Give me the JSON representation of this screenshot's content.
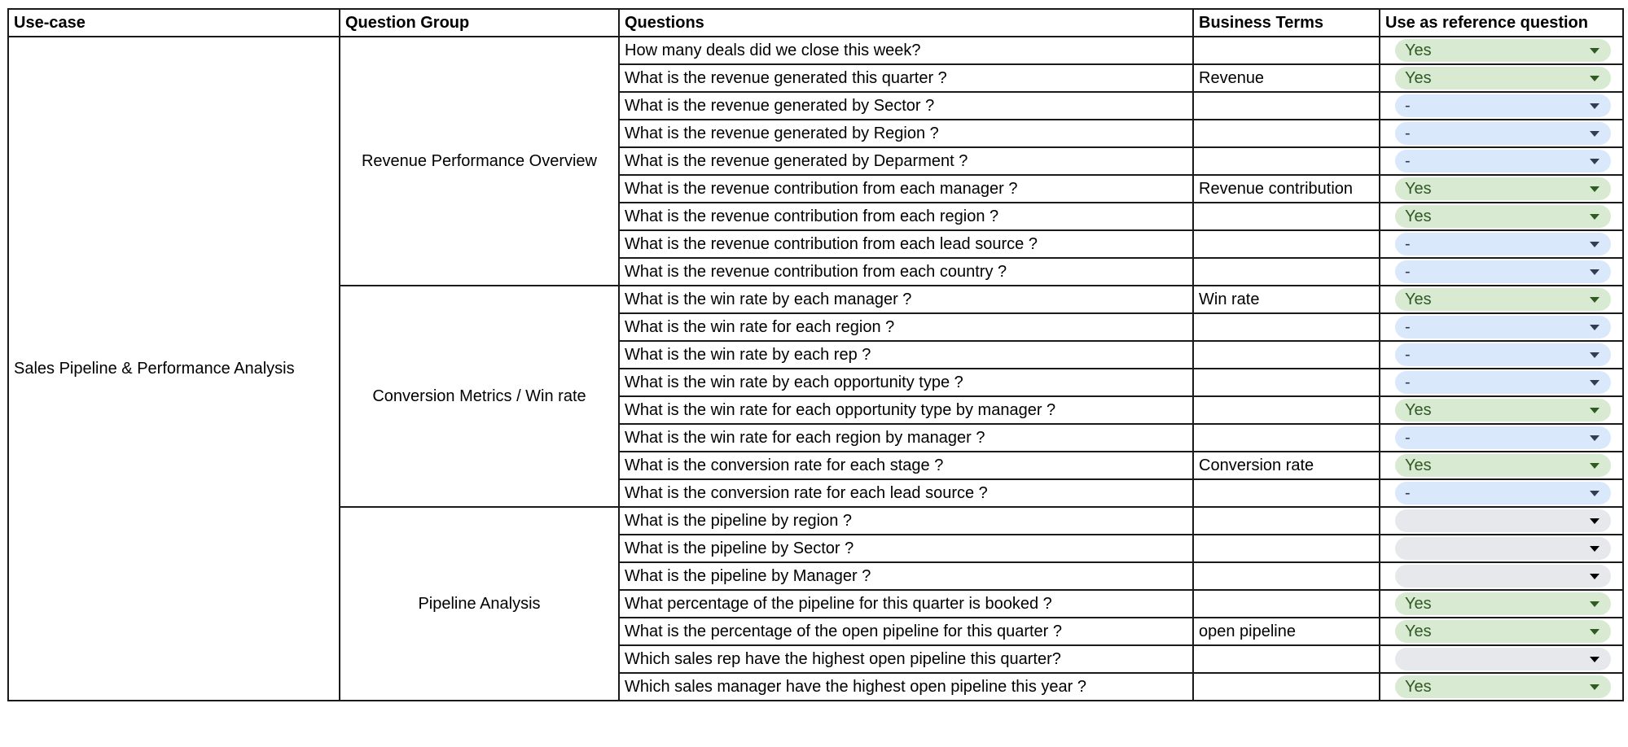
{
  "headers": [
    "Use-case",
    "Question Group",
    "Questions",
    "Business Terms",
    "Use as reference question"
  ],
  "use_case": "Sales Pipeline & Performance Analysis",
  "colors": {
    "yes_bg": "#d9ead3",
    "dash_bg": "#dae8fc",
    "empty_bg": "#e7e8eb"
  },
  "groups": [
    {
      "name": "Revenue Performance Overview",
      "rows": [
        {
          "question": "How many deals did we close this week?",
          "term": "",
          "ref": "Yes"
        },
        {
          "question": "What is the revenue generated this quarter ?",
          "term": "Revenue",
          "ref": "Yes"
        },
        {
          "question": "What is the revenue generated by Sector ?",
          "term": "",
          "ref": "-"
        },
        {
          "question": "What is the revenue generated by Region ?",
          "term": "",
          "ref": "-"
        },
        {
          "question": "What is the revenue generated by Deparment ?",
          "term": "",
          "ref": "-"
        },
        {
          "question": "What is the revenue contribution from each manager ?",
          "term": "Revenue contribution",
          "ref": "Yes"
        },
        {
          "question": "What is the revenue contribution from each region ?",
          "term": "",
          "ref": "Yes"
        },
        {
          "question": "What is the revenue contribution from each lead source ?",
          "term": "",
          "ref": "-"
        },
        {
          "question": "What is the revenue contribution from each country ?",
          "term": "",
          "ref": "-"
        }
      ]
    },
    {
      "name": "Conversion Metrics / Win rate",
      "rows": [
        {
          "question": "What is the win rate by each manager  ?",
          "term": "Win rate",
          "ref": "Yes"
        },
        {
          "question": "What is the win rate for each region ?",
          "term": "",
          "ref": "-"
        },
        {
          "question": "What is the win rate by each rep ?",
          "term": "",
          "ref": "-"
        },
        {
          "question": "What is the win rate by each opportunity type ?",
          "term": "",
          "ref": "-"
        },
        {
          "question": "What is the win rate for each opportunity type by manager ?",
          "term": "",
          "ref": "Yes"
        },
        {
          "question": "What is the win rate for each region by manager ?",
          "term": "",
          "ref": "-"
        },
        {
          "question": "What is the conversion rate for each stage ?",
          "term": "Conversion rate",
          "ref": "Yes"
        },
        {
          "question": "What is the conversion rate for each lead source ?",
          "term": "",
          "ref": "-"
        }
      ]
    },
    {
      "name": "Pipeline Analysis",
      "rows": [
        {
          "question": "What is the pipeline by region ?",
          "term": "",
          "ref": ""
        },
        {
          "question": "What is the pipeline by Sector ?",
          "term": "",
          "ref": ""
        },
        {
          "question": "What is the pipeline by Manager ?",
          "term": "",
          "ref": ""
        },
        {
          "question": "What percentage of the pipeline for this quarter is booked ?",
          "term": "",
          "ref": "Yes"
        },
        {
          "question": "What is the percentage of the open pipeline for this quarter ?",
          "term": "open pipeline",
          "ref": "Yes"
        },
        {
          "question": "Which sales rep have the highest open pipeline this quarter?",
          "term": "",
          "ref": ""
        },
        {
          "question": "Which sales manager have the highest open pipeline this year ?",
          "term": "",
          "ref": "Yes"
        }
      ]
    }
  ]
}
